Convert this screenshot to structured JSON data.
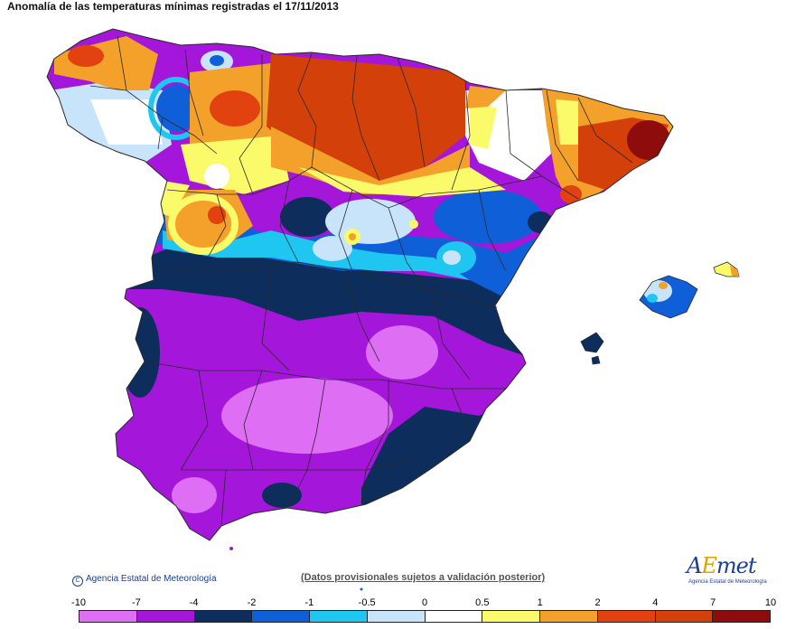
{
  "title": "Anomalía de las temperaturas mínimas registradas el 17/11/2013",
  "credit": "Agencia Estatal de Meteorología",
  "disclaimer": "(Datos provisionales sujetos a validación posterior)",
  "logo": {
    "main_a": "A",
    "main_e": "E",
    "main_rest": "met",
    "sub": "Agencia Estatal de Meteorología"
  },
  "scale": {
    "labels": [
      "-10",
      "-7",
      "-4",
      "-2",
      "-1",
      "-0.5",
      "0",
      "0.5",
      "1",
      "2",
      "4",
      "7",
      "10"
    ],
    "colors": [
      "#de6ef4",
      "#a416d9",
      "#0d2d5c",
      "#0f60d8",
      "#1fc6f0",
      "#c8e4fa",
      "#ffffff",
      "#fbfa6a",
      "#f4a12c",
      "#e2420f",
      "#d3400a",
      "#8e0c0c",
      "#6a380a"
    ]
  },
  "colors": {
    "border": "#2a2a2a",
    "sea": "#ffffff"
  }
}
